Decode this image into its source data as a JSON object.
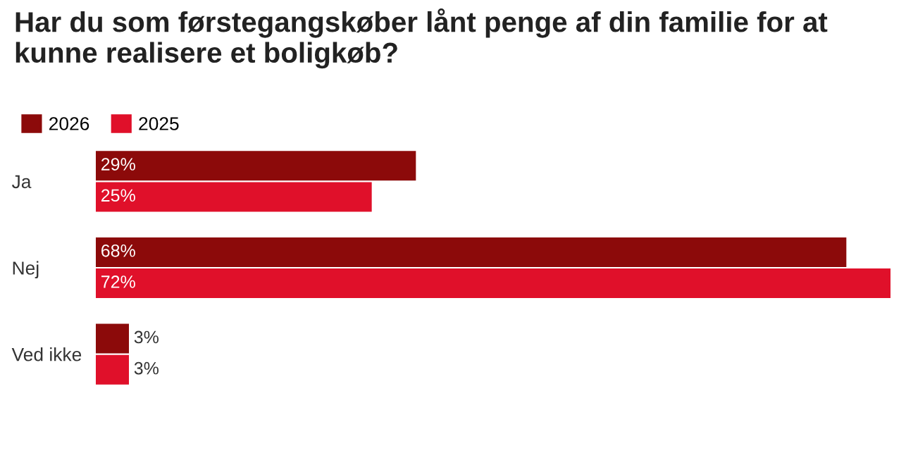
{
  "chart_data": {
    "type": "bar",
    "orientation": "horizontal",
    "title": "Har du som førstegangskøber lånt penge af din familie for at kunne realisere et boligkøb?",
    "categories": [
      "Ja",
      "Nej",
      "Ved ikke"
    ],
    "series": [
      {
        "name": "2026",
        "color": "#8c0a0a",
        "values": [
          29,
          68,
          3
        ],
        "value_labels": [
          "29%",
          "68%",
          "3%"
        ]
      },
      {
        "name": "2025",
        "color": "#e0102a",
        "values": [
          25,
          72,
          3
        ],
        "value_labels": [
          "25%",
          "72%",
          "3%"
        ]
      }
    ],
    "legend": "top",
    "grid": false
  }
}
